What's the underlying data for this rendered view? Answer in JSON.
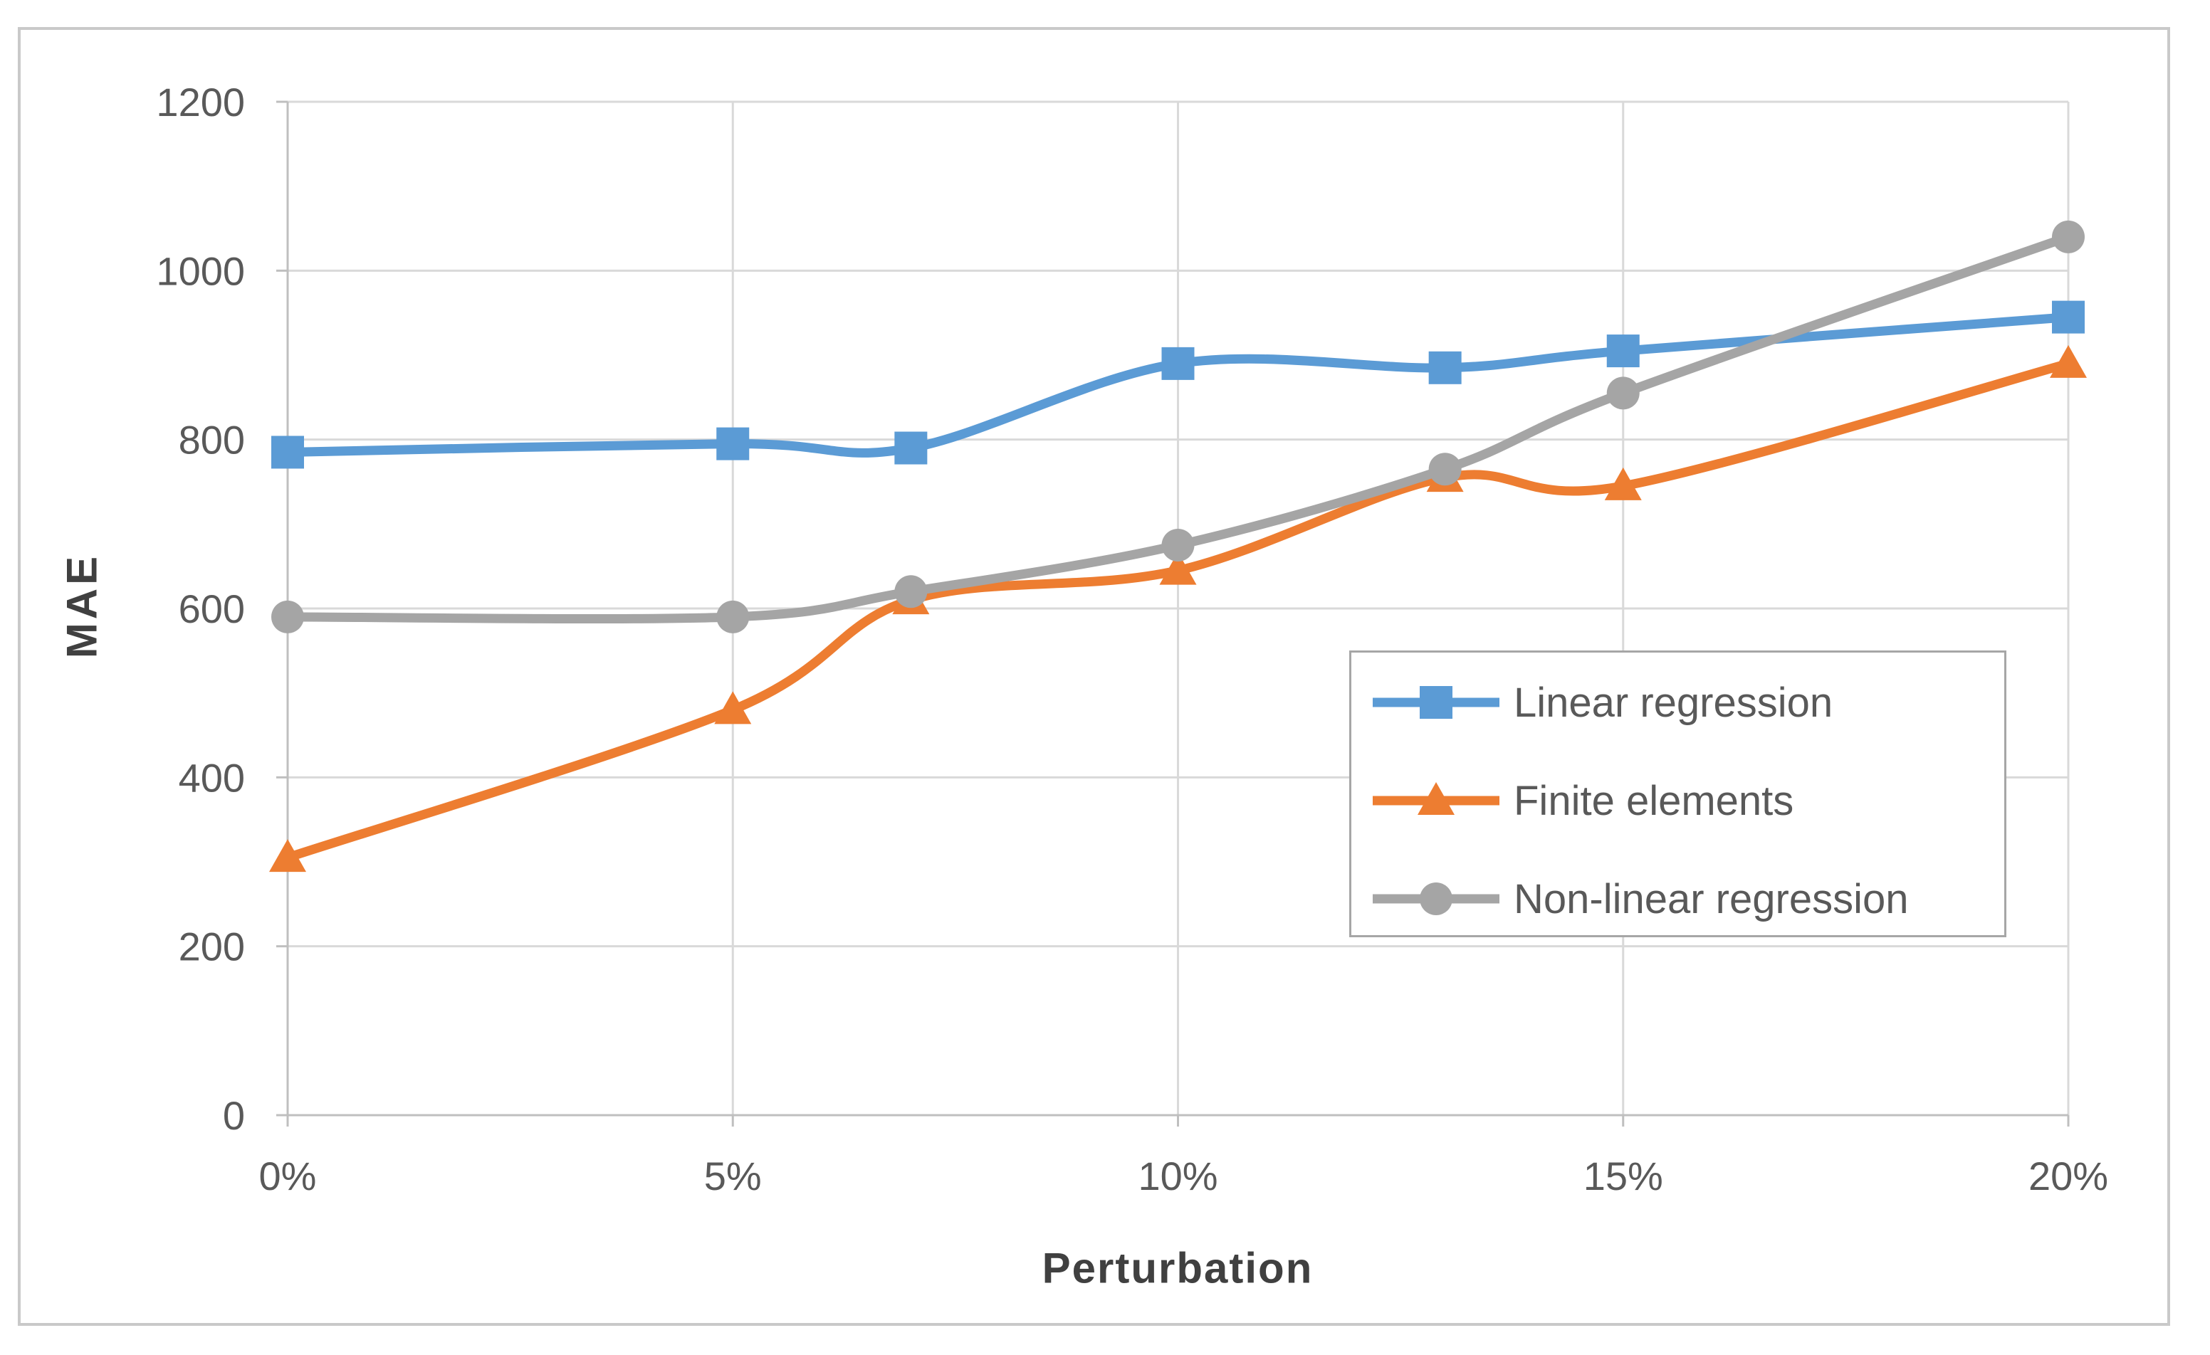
{
  "chart_data": {
    "type": "line",
    "smoothed": true,
    "x": [
      0,
      5,
      7,
      10,
      13,
      15,
      20
    ],
    "series": [
      {
        "name": "Linear regression",
        "marker": "square",
        "color": "#5B9BD5",
        "values": [
          785,
          795,
          790,
          890,
          885,
          905,
          945
        ]
      },
      {
        "name": "Finite elements",
        "marker": "triangle",
        "color": "#ED7D31",
        "values": [
          305,
          480,
          610,
          645,
          755,
          745,
          890
        ]
      },
      {
        "name": "Non-linear regression",
        "marker": "circle",
        "color": "#A5A5A5",
        "values": [
          590,
          590,
          620,
          675,
          765,
          855,
          1040
        ]
      }
    ],
    "title": "",
    "xlabel": "Perturbation",
    "ylabel": "MAE",
    "xlim": [
      0,
      20
    ],
    "ylim": [
      0,
      1200
    ],
    "x_tick_values": [
      0,
      5,
      10,
      15,
      20
    ],
    "x_tick_labels": [
      "0%",
      "5%",
      "10%",
      "15%",
      "20%"
    ],
    "y_tick_values": [
      0,
      200,
      400,
      600,
      800,
      1000,
      1200
    ],
    "y_tick_labels": [
      "0",
      "200",
      "400",
      "600",
      "800",
      "1000",
      "1200"
    ],
    "grid": true,
    "legend_position": "inside-right"
  },
  "colors": {
    "background": "#FFFFFF",
    "figure_border": "#C9C9C9",
    "gridline": "#D9D9D9",
    "axis_line": "#BFBFBF",
    "tick_text": "#595959",
    "axis_title_text": "#404040",
    "legend_border": "#A6A6A6",
    "legend_text": "#595959"
  }
}
